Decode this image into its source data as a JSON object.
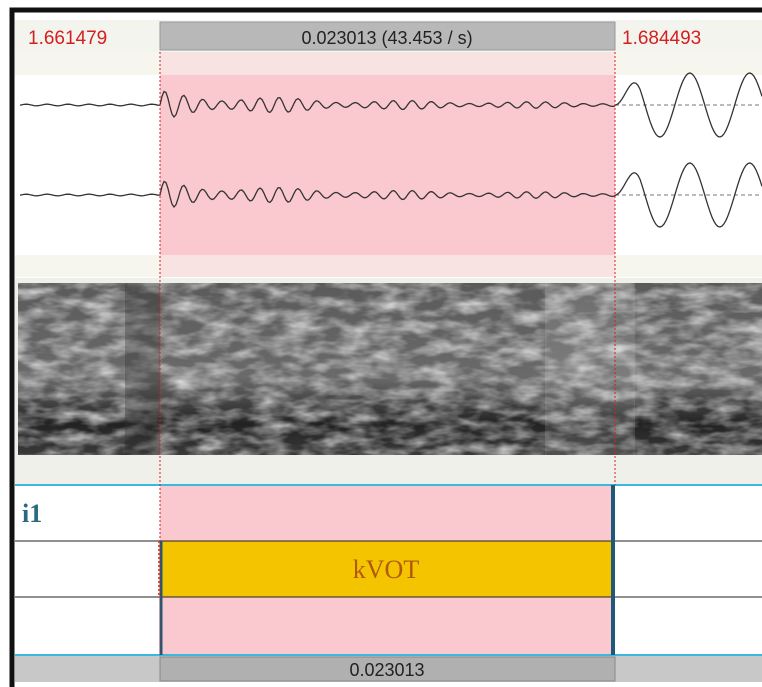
{
  "selection": {
    "start": "1.661479",
    "duration": "0.023013 (43.453 / s)",
    "end": "1.684493"
  },
  "tier": {
    "name": "i1",
    "interval_label": "kVOT"
  },
  "footer": {
    "duration": "0.023013"
  }
}
